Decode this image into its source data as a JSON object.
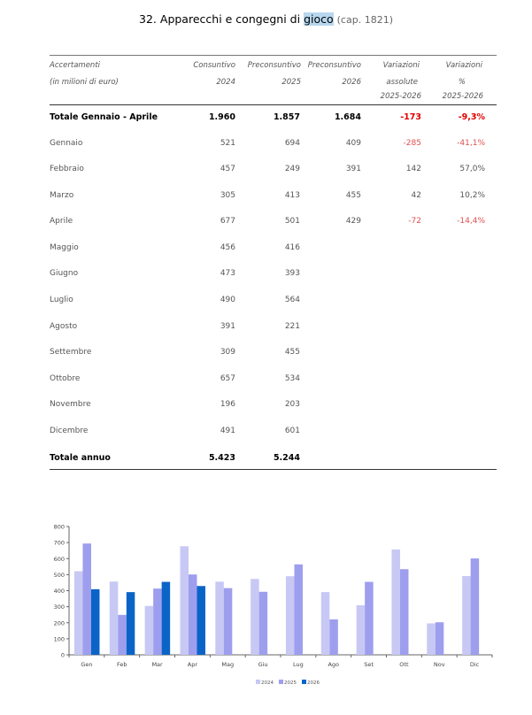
{
  "title": {
    "number": "32.",
    "text_before": "Apparecchi e congegni di",
    "highlight": "gioco",
    "cap": "(cap. 1821)"
  },
  "header": {
    "col0": [
      "Accertamenti",
      "(in milioni di euro)"
    ],
    "col1": [
      "Consuntivo",
      "2024"
    ],
    "col2": [
      "Preconsuntivo",
      "2025"
    ],
    "col3": [
      "Preconsuntivo",
      "2026"
    ],
    "col4": [
      "Variazioni",
      "assolute",
      "2025-2026"
    ],
    "col5": [
      "Variazioni",
      "%",
      "2025-2026"
    ]
  },
  "rows": [
    {
      "label": "Totale Gennaio - Aprile",
      "v2024": "1.960",
      "v2025": "1.857",
      "v2026": "1.684",
      "abs": "-173",
      "pct": "-9,3%",
      "bold": true,
      "neg": true
    },
    {
      "label": "Gennaio",
      "v2024": "521",
      "v2025": "694",
      "v2026": "409",
      "abs": "-285",
      "pct": "-41,1%",
      "neg": true
    },
    {
      "label": "Febbraio",
      "v2024": "457",
      "v2025": "249",
      "v2026": "391",
      "abs": "142",
      "pct": "57,0%"
    },
    {
      "label": "Marzo",
      "v2024": "305",
      "v2025": "413",
      "v2026": "455",
      "abs": "42",
      "pct": "10,2%"
    },
    {
      "label": "Aprile",
      "v2024": "677",
      "v2025": "501",
      "v2026": "429",
      "abs": "-72",
      "pct": "-14,4%",
      "neg": true
    },
    {
      "label": "Maggio",
      "v2024": "456",
      "v2025": "416",
      "v2026": "",
      "abs": "",
      "pct": ""
    },
    {
      "label": "Giugno",
      "v2024": "473",
      "v2025": "393",
      "v2026": "",
      "abs": "",
      "pct": ""
    },
    {
      "label": "Luglio",
      "v2024": "490",
      "v2025": "564",
      "v2026": "",
      "abs": "",
      "pct": ""
    },
    {
      "label": "Agosto",
      "v2024": "391",
      "v2025": "221",
      "v2026": "",
      "abs": "",
      "pct": ""
    },
    {
      "label": "Settembre",
      "v2024": "309",
      "v2025": "455",
      "v2026": "",
      "abs": "",
      "pct": ""
    },
    {
      "label": "Ottobre",
      "v2024": "657",
      "v2025": "534",
      "v2026": "",
      "abs": "",
      "pct": ""
    },
    {
      "label": "Novembre",
      "v2024": "196",
      "v2025": "203",
      "v2026": "",
      "abs": "",
      "pct": ""
    },
    {
      "label": "Dicembre",
      "v2024": "491",
      "v2025": "601",
      "v2026": "",
      "abs": "",
      "pct": ""
    },
    {
      "label": "Totale annuo",
      "v2024": "5.423",
      "v2025": "5.244",
      "v2026": "",
      "abs": "",
      "pct": "",
      "bold": true
    }
  ],
  "colors": {
    "s2024": "#c8c8f4",
    "s2025": "#9e9eee",
    "s2026": "#0a64c8",
    "negative": "#e05050"
  },
  "chart_data": {
    "type": "bar",
    "categories": [
      "Gen",
      "Feb",
      "Mar",
      "Apr",
      "Mag",
      "Giu",
      "Lug",
      "Ago",
      "Set",
      "Ott",
      "Nov",
      "Dic"
    ],
    "series": [
      {
        "name": "2024",
        "values": [
          521,
          457,
          305,
          677,
          456,
          473,
          490,
          391,
          309,
          657,
          196,
          491
        ]
      },
      {
        "name": "2025",
        "values": [
          694,
          249,
          413,
          501,
          416,
          393,
          564,
          221,
          455,
          534,
          203,
          601
        ]
      },
      {
        "name": "2026",
        "values": [
          409,
          391,
          455,
          429,
          null,
          null,
          null,
          null,
          null,
          null,
          null,
          null
        ]
      }
    ],
    "ylim": [
      0,
      800
    ],
    "yticks": [
      "0",
      "100",
      "200",
      "300",
      "400",
      "500",
      "600",
      "700",
      "800"
    ],
    "legend": "bottom",
    "grid": false
  }
}
